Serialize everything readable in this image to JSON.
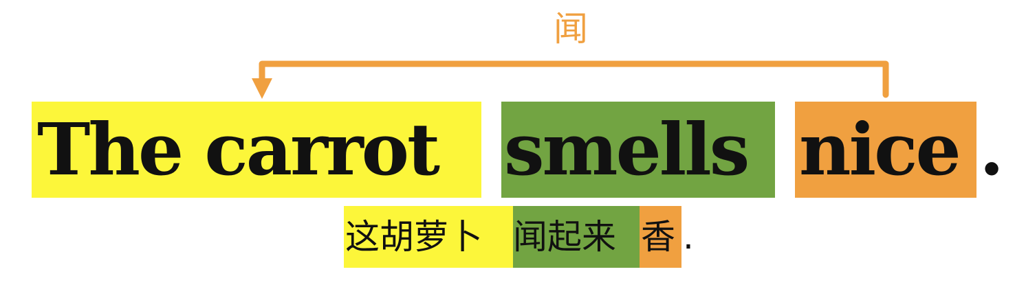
{
  "arrow": {
    "label": "闻",
    "color": "#f0a040"
  },
  "english": {
    "segments": [
      "The carrot",
      "smells",
      "nice"
    ],
    "period": ".",
    "colors": [
      "#fcf63a",
      "#72a442",
      "#f0a040"
    ]
  },
  "chinese": {
    "segments": [
      "这胡萝卜",
      "闻起来",
      "香"
    ],
    "period": ".",
    "colors": [
      "#fcf63a",
      "#72a442",
      "#f0a040"
    ]
  }
}
